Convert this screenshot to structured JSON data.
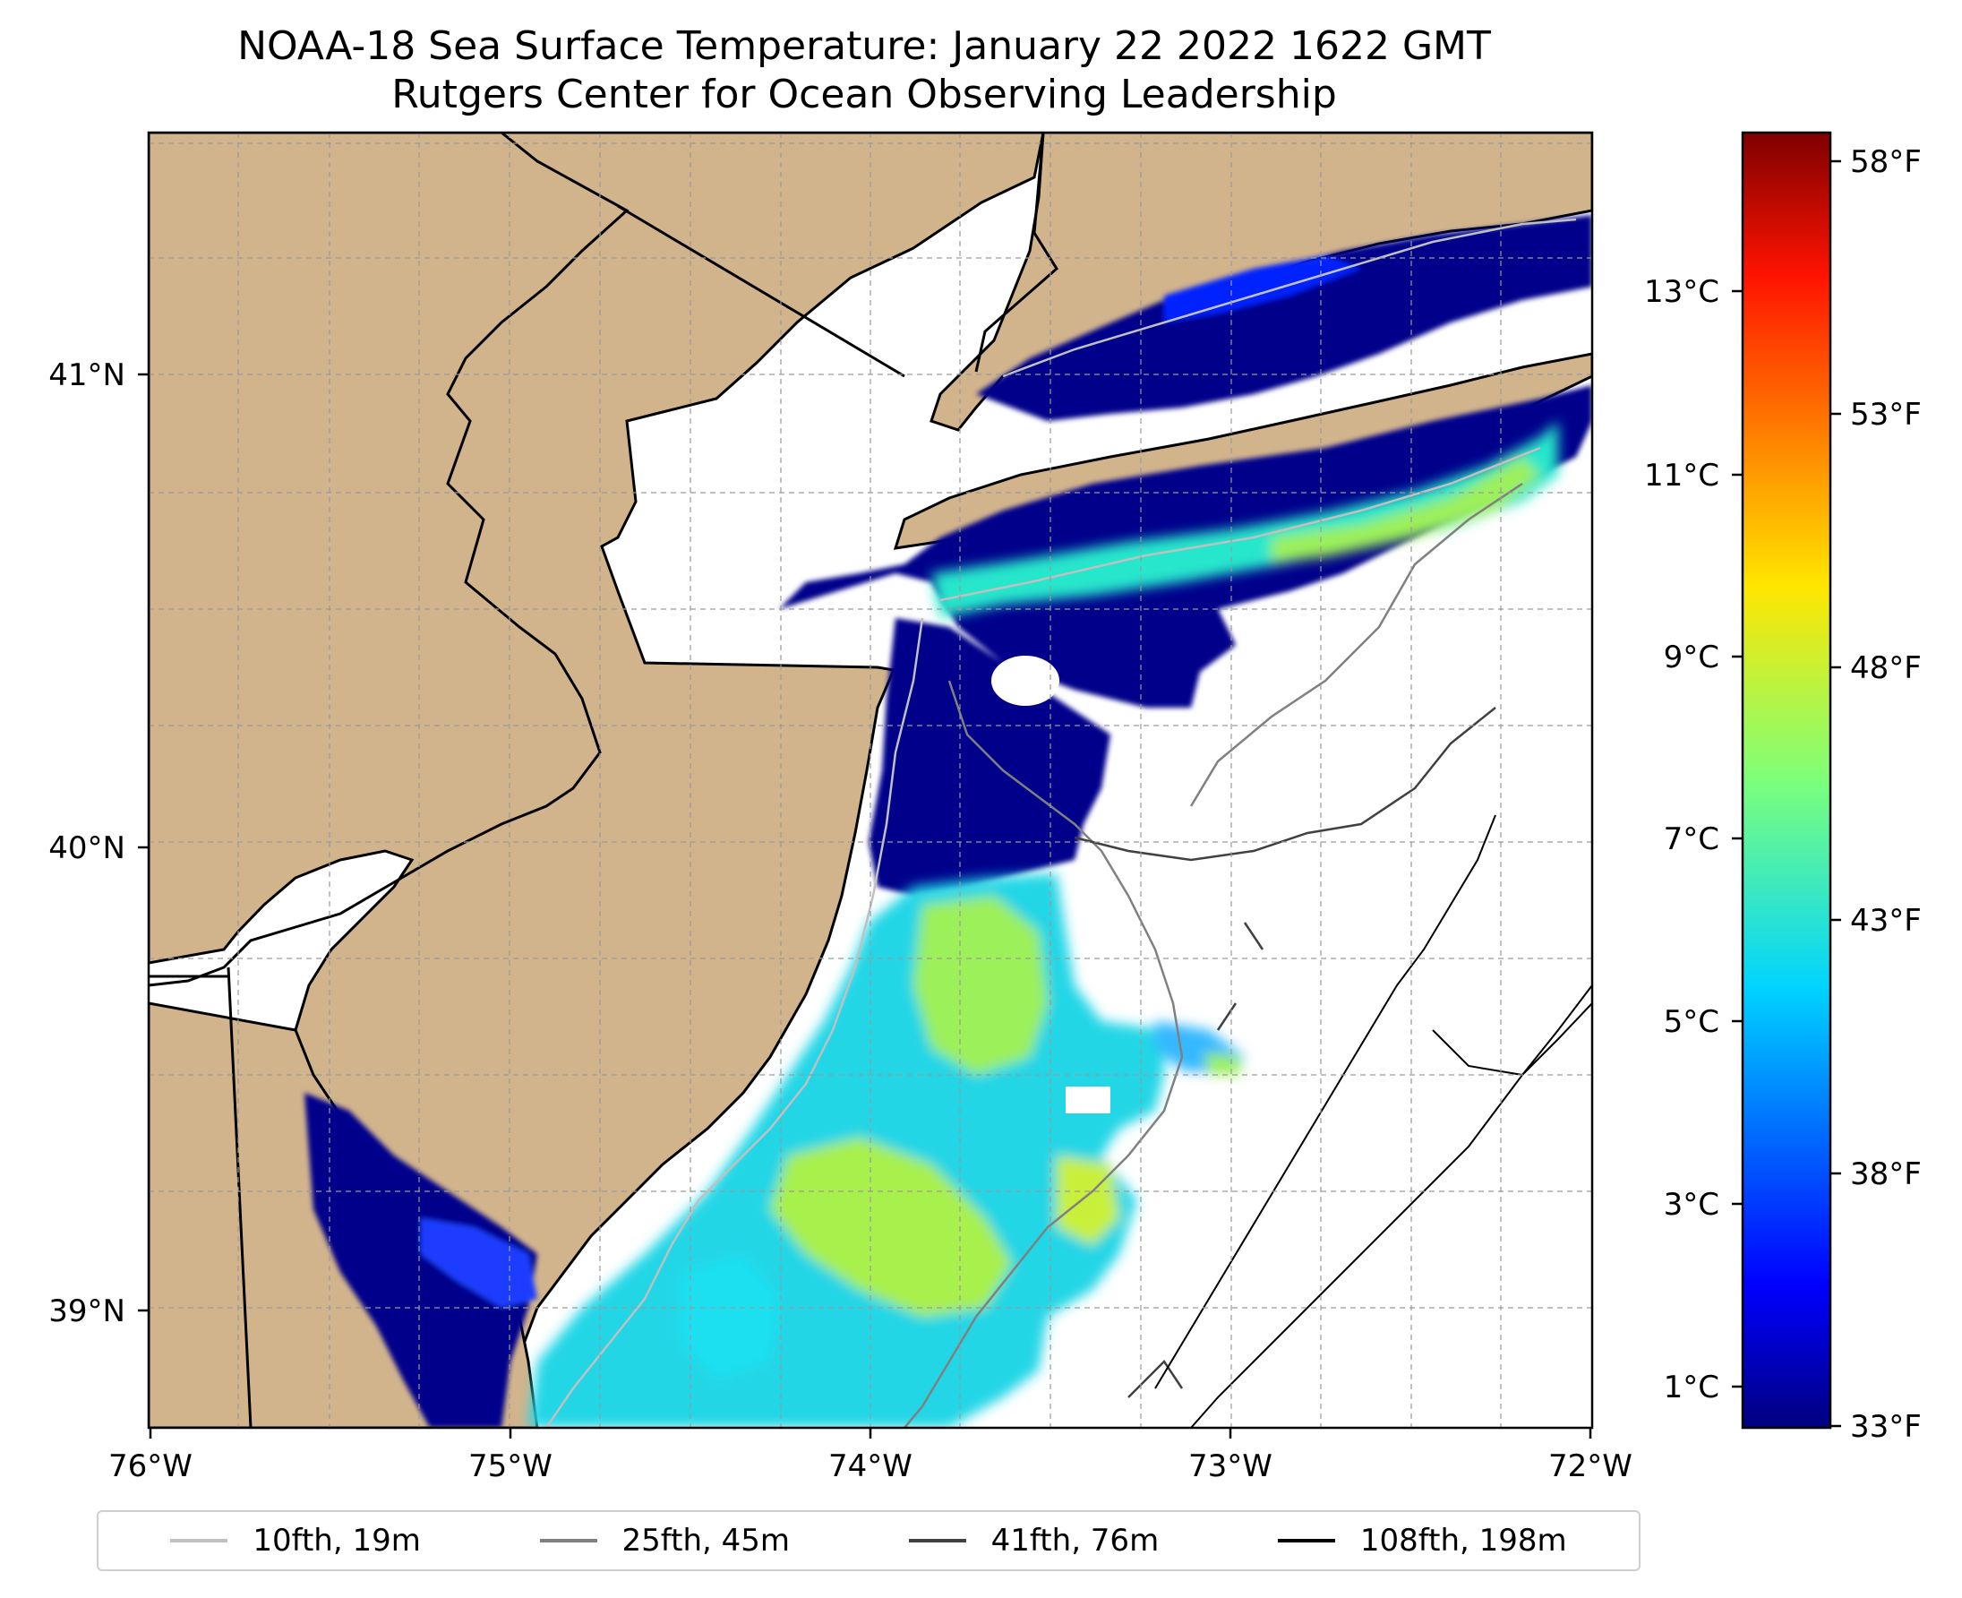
{
  "title": {
    "line1": "NOAA-18 Sea Surface Temperature: January 22 2022 1622 GMT",
    "line2": "Rutgers Center for Ocean Observing Leadership"
  },
  "map": {
    "longitude_labels": [
      "76°W",
      "75°W",
      "74°W",
      "73°W",
      "72°W"
    ],
    "latitude_labels": [
      "41°N",
      "40°N",
      "39°N"
    ],
    "colors": {
      "land": "#d2b48c",
      "coast": "#000000",
      "gridline": "#9a9a9a",
      "sst_cold": "#00008b",
      "sst_cool": "#0000ff",
      "sst_mid": "#1ee6d2",
      "sst_warm": "#b4f03c"
    }
  },
  "colorbar": {
    "celsius_labels": [
      "13°C",
      "11°C",
      "9°C",
      "7°C",
      "5°C",
      "3°C",
      "1°C"
    ],
    "fahrenheit_labels": [
      "58°F",
      "53°F",
      "48°F",
      "43°F",
      "38°F",
      "33°F"
    ],
    "colormap": "jet"
  },
  "legend": {
    "items": [
      {
        "label": "10fth, 19m",
        "color": "#c0c0c0"
      },
      {
        "label": "25fth, 45m",
        "color": "#808080"
      },
      {
        "label": "41fth, 76m",
        "color": "#404040"
      },
      {
        "label": "108fth, 198m",
        "color": "#000000"
      }
    ]
  }
}
